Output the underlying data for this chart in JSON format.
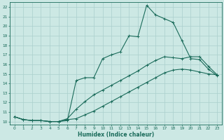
{
  "xlabel": "Humidex (Indice chaleur)",
  "bg_color": "#cce8e4",
  "line_color": "#1a6b5a",
  "grid_color": "#aacfcc",
  "xlim": [
    -0.5,
    23.5
  ],
  "ylim": [
    9.7,
    22.5
  ],
  "xticks": [
    0,
    1,
    2,
    3,
    4,
    5,
    6,
    7,
    8,
    9,
    10,
    11,
    12,
    13,
    14,
    15,
    16,
    17,
    18,
    19,
    20,
    21,
    22,
    23
  ],
  "yticks": [
    10,
    11,
    12,
    13,
    14,
    15,
    16,
    17,
    18,
    19,
    20,
    21,
    22
  ],
  "curve1_x": [
    0,
    1,
    2,
    3,
    4,
    5,
    6,
    7,
    8,
    9,
    10,
    11,
    12,
    13,
    14,
    15,
    16,
    17,
    18,
    19,
    20,
    21,
    22,
    23
  ],
  "curve1_y": [
    10.5,
    10.2,
    10.1,
    10.1,
    10.0,
    10.0,
    10.1,
    14.3,
    14.6,
    14.6,
    16.6,
    17.0,
    17.3,
    19.0,
    18.9,
    22.2,
    21.2,
    20.8,
    20.4,
    18.5,
    16.6,
    16.5,
    15.5,
    14.8
  ],
  "curve2_x": [
    0,
    1,
    2,
    3,
    4,
    5,
    6,
    7,
    8,
    9,
    10,
    11,
    12,
    13,
    14,
    15,
    16,
    17,
    18,
    19,
    20,
    21,
    22,
    23
  ],
  "curve2_y": [
    10.5,
    10.2,
    10.1,
    10.1,
    10.0,
    10.0,
    10.3,
    11.3,
    12.1,
    12.8,
    13.3,
    13.8,
    14.3,
    14.8,
    15.3,
    15.9,
    16.4,
    16.8,
    16.7,
    16.6,
    16.8,
    16.8,
    15.8,
    14.9
  ],
  "curve3_x": [
    0,
    1,
    2,
    3,
    4,
    5,
    6,
    7,
    8,
    9,
    10,
    11,
    12,
    13,
    14,
    15,
    16,
    17,
    18,
    19,
    20,
    21,
    22,
    23
  ],
  "curve3_y": [
    10.5,
    10.2,
    10.1,
    10.1,
    10.0,
    10.0,
    10.2,
    10.3,
    10.7,
    11.1,
    11.6,
    12.1,
    12.6,
    13.1,
    13.6,
    14.1,
    14.6,
    15.1,
    15.4,
    15.5,
    15.4,
    15.2,
    15.0,
    14.9
  ],
  "marker_size": 1.8,
  "line_width": 0.8,
  "tick_fontsize": 4.2,
  "xlabel_fontsize": 5.5
}
